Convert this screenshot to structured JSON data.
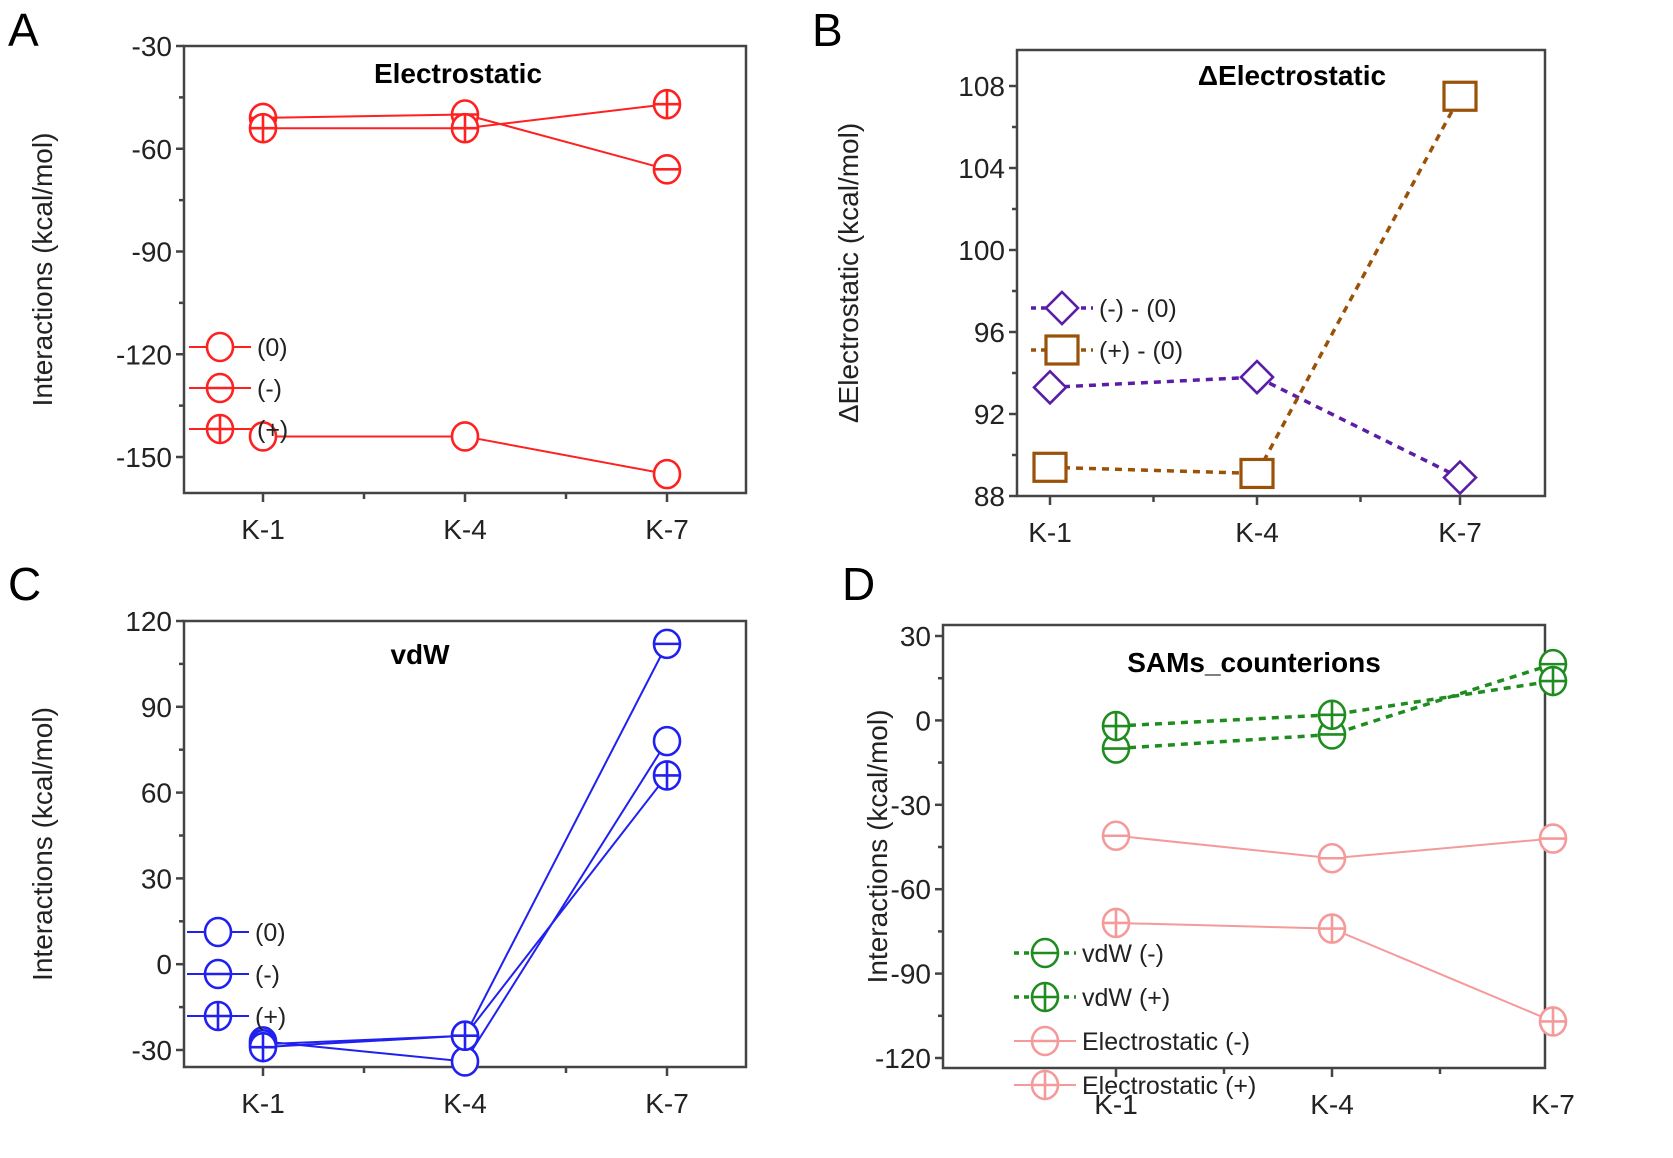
{
  "figure": {
    "panels": [
      {
        "letter": "A"
      },
      {
        "letter": "B"
      },
      {
        "letter": "C"
      },
      {
        "letter": "D"
      }
    ]
  },
  "chart_data": [
    {
      "panel": "A",
      "type": "line",
      "title": "Electrostatic",
      "xlabel": "",
      "ylabel": "Interactions (kcal/mol)",
      "categories": [
        "K-1",
        "K-4",
        "K-7"
      ],
      "ylim": [
        -160,
        -30
      ],
      "yticks": [
        -30,
        -60,
        -90,
        -120,
        -150
      ],
      "ytick_labels": [
        "-30",
        "-60",
        "-90",
        "-120",
        "-150"
      ],
      "grid": false,
      "legend_position": "center-left",
      "series": [
        {
          "name": "(0)",
          "marker": "circle",
          "color": "#ff2020",
          "dash": false,
          "values": [
            -144,
            -144,
            -155
          ]
        },
        {
          "name": "(-)",
          "marker": "circle-minus",
          "color": "#ff2020",
          "dash": false,
          "values": [
            -51,
            -50,
            -66
          ]
        },
        {
          "name": "(+)",
          "marker": "circle-plus",
          "color": "#ff2020",
          "dash": false,
          "values": [
            -54,
            -54,
            -47
          ]
        }
      ]
    },
    {
      "panel": "B",
      "type": "line",
      "title": "ΔElectrostatic",
      "xlabel": "",
      "ylabel": "ΔElectrostatic (kcal/mol)",
      "categories": [
        "K-1",
        "K-4",
        "K-7"
      ],
      "ylim": [
        88,
        109.5
      ],
      "yticks": [
        88,
        92,
        96,
        100,
        104,
        108
      ],
      "ytick_labels": [
        "88",
        "92",
        "96",
        "100",
        "104",
        "108"
      ],
      "grid": false,
      "legend_position": "center-left",
      "series": [
        {
          "name": "(-) - (0)",
          "marker": "diamond",
          "color": "#5a1ea6",
          "dash": true,
          "values": [
            93.3,
            93.8,
            88.9
          ]
        },
        {
          "name": "(+) - (0)",
          "marker": "square",
          "color": "#9a5209",
          "dash": true,
          "values": [
            89.4,
            89.1,
            107.5
          ]
        }
      ]
    },
    {
      "panel": "C",
      "type": "line",
      "title": "vdW",
      "xlabel": "",
      "ylabel": "Interactions (kcal/mol)",
      "categories": [
        "K-1",
        "K-4",
        "K-7"
      ],
      "ylim": [
        -40,
        120
      ],
      "yticks": [
        -30,
        0,
        30,
        60,
        90,
        120
      ],
      "ytick_labels": [
        "-30",
        "0",
        "30",
        "60",
        "90",
        "120"
      ],
      "grid": false,
      "legend_position": "lower-left",
      "series": [
        {
          "name": "(0)",
          "marker": "circle",
          "color": "#2020f0",
          "dash": false,
          "values": [
            -27,
            -34,
            78
          ]
        },
        {
          "name": "(-)",
          "marker": "circle-minus",
          "color": "#2020f0",
          "dash": false,
          "values": [
            -28,
            -25,
            112
          ]
        },
        {
          "name": "(+)",
          "marker": "circle-plus",
          "color": "#2020f0",
          "dash": false,
          "values": [
            -29,
            -25,
            66
          ]
        }
      ]
    },
    {
      "panel": "D",
      "type": "line",
      "title": "SAMs_counterions",
      "xlabel": "",
      "ylabel": "Interactions (kcal/mol)",
      "categories": [
        "K-1",
        "K-4",
        "K-7"
      ],
      "ylim": [
        -135,
        30
      ],
      "yticks": [
        30,
        0,
        -30,
        -60,
        -90,
        -120
      ],
      "ytick_labels": [
        "30",
        "0",
        "-30",
        "-60",
        "-90",
        "-120"
      ],
      "grid": false,
      "legend_position": "lower-left",
      "series": [
        {
          "name": "vdW (-)",
          "marker": "circle-minus",
          "color": "#1e8c1e",
          "dash": true,
          "values": [
            -10,
            -5,
            20
          ]
        },
        {
          "name": "vdW (+)",
          "marker": "circle-plus",
          "color": "#1e8c1e",
          "dash": true,
          "values": [
            -2,
            2,
            14
          ]
        },
        {
          "name": "Electrostatic (-)",
          "marker": "circle-minus",
          "color": "#f59a9a",
          "dash": false,
          "values": [
            -41,
            -49,
            -42
          ]
        },
        {
          "name": "Electrostatic (+)",
          "marker": "circle-plus",
          "color": "#f59a9a",
          "dash": false,
          "values": [
            -72,
            -74,
            -107
          ]
        }
      ]
    }
  ]
}
